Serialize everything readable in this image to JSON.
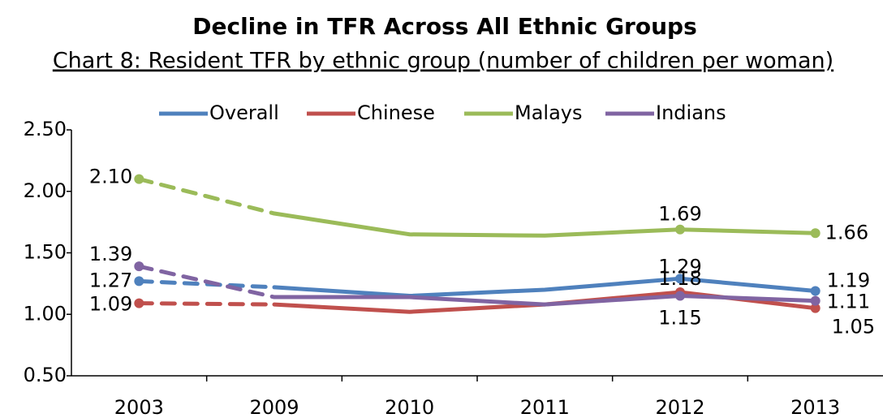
{
  "chart_data": {
    "type": "line",
    "title": "Decline in TFR Across All Ethnic Groups",
    "subtitle": "Chart 8: Resident TFR by ethnic group (number of children per woman)",
    "categories": [
      "2003",
      "2009",
      "2010",
      "2011",
      "2012",
      "2013"
    ],
    "series": [
      {
        "name": "Overall",
        "color": "#4f81bd",
        "values": [
          1.27,
          1.22,
          1.15,
          1.2,
          1.29,
          1.19
        ],
        "value_labels": [
          "1.27",
          null,
          null,
          null,
          "1.29",
          "1.19"
        ]
      },
      {
        "name": "Chinese",
        "color": "#c0504d",
        "values": [
          1.09,
          1.08,
          1.02,
          1.08,
          1.18,
          1.05
        ],
        "value_labels": [
          "1.09",
          null,
          null,
          null,
          "1.18",
          "1.05"
        ]
      },
      {
        "name": "Malays",
        "color": "#9bbb59",
        "values": [
          2.1,
          1.82,
          1.65,
          1.64,
          1.69,
          1.66
        ],
        "value_labels": [
          "2.10",
          null,
          null,
          null,
          "1.69",
          "1.66"
        ]
      },
      {
        "name": "Indians",
        "color": "#8064a2",
        "values": [
          1.39,
          1.14,
          1.14,
          1.08,
          1.15,
          1.11
        ],
        "value_labels": [
          "1.39",
          null,
          null,
          null,
          "1.15",
          "1.11"
        ]
      }
    ],
    "ylim": [
      0.5,
      2.5
    ],
    "yticks": [
      {
        "value": 0.5,
        "label": "0.50"
      },
      {
        "value": 1.0,
        "label": "1.00"
      },
      {
        "value": 1.5,
        "label": "1.50"
      },
      {
        "value": 2.0,
        "label": "2.00"
      },
      {
        "value": 2.5,
        "label": "2.50"
      }
    ]
  }
}
